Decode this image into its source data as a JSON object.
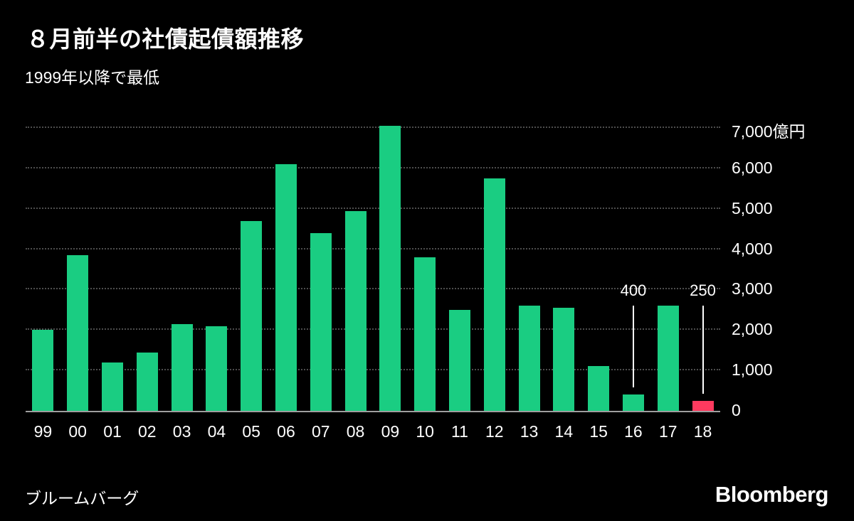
{
  "header": {
    "title": "８月前半の社債起債額推移",
    "subtitle": "1999年以降で最低"
  },
  "footer": {
    "source": "ブルームバーグ",
    "brand": "Bloomberg"
  },
  "chart_data": {
    "type": "bar",
    "title": "８月前半の社債起債額推移",
    "subtitle": "1999年以降で最低",
    "categories": [
      "99",
      "00",
      "01",
      "02",
      "03",
      "04",
      "05",
      "06",
      "07",
      "08",
      "09",
      "10",
      "11",
      "12",
      "13",
      "14",
      "15",
      "16",
      "17",
      "18"
    ],
    "values": [
      2000,
      3850,
      1200,
      1450,
      2150,
      2100,
      4700,
      6100,
      4400,
      4950,
      7050,
      3800,
      2500,
      5750,
      2600,
      2550,
      1100,
      400,
      2600,
      250
    ],
    "ylim": [
      0,
      7000
    ],
    "yticks": [
      {
        "value": 7000,
        "label": "7,000億円"
      },
      {
        "value": 6000,
        "label": "6,000"
      },
      {
        "value": 5000,
        "label": "5,000"
      },
      {
        "value": 4000,
        "label": "4,000"
      },
      {
        "value": 3000,
        "label": "3,000"
      },
      {
        "value": 2000,
        "label": "2,000"
      },
      {
        "value": 1000,
        "label": "1,000"
      },
      {
        "value": 0,
        "label": "0"
      }
    ],
    "grid": {
      "style": "dotted-horizontal",
      "values": [
        1000,
        2000,
        3000,
        4000,
        5000,
        6000,
        7000
      ]
    },
    "highlight_index": 19,
    "annotations": [
      {
        "index": 17,
        "label": "400"
      },
      {
        "index": 19,
        "label": "250"
      }
    ],
    "colors": {
      "bar": "#1acd82",
      "highlight": "#ff3a5f",
      "grid": "#4d4d4d",
      "axis": "#9e9e9e",
      "background": "#000000",
      "text": "#ffffff"
    },
    "legend": null,
    "xlabel": "",
    "ylabel": ""
  }
}
